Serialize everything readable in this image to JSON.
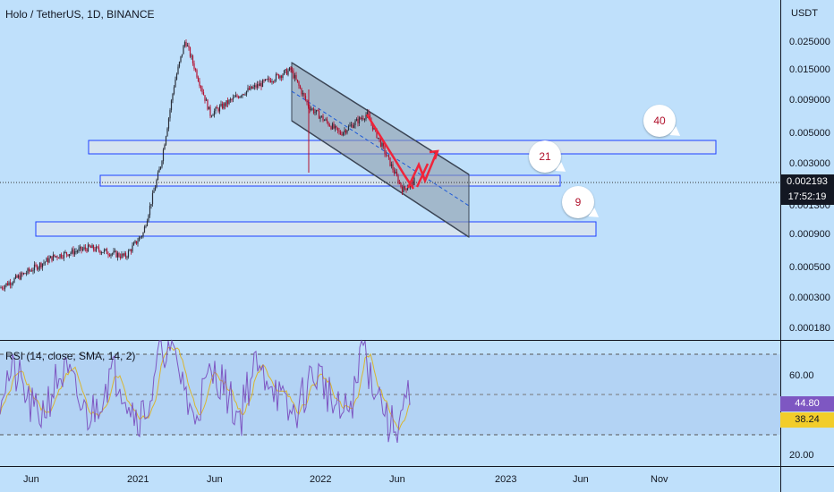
{
  "header": {
    "symbol_title": "Holo / TetherUS, 1D, BINANCE",
    "axis_currency": "USDT"
  },
  "price_badge": {
    "price": "0.002193",
    "countdown": "17:52:19"
  },
  "rsi_panel": {
    "label": "RSI (14, close, SMA, 14, 2)",
    "rsi_value": "44.80",
    "sma_value": "38.24",
    "upper_band": 70,
    "middle_band": 50,
    "lower_band": 30
  },
  "annotations": {
    "bubbles": [
      "40",
      "21",
      "9"
    ]
  },
  "colors": {
    "background": "#bfe0fb",
    "candle_up": "#2a2e39",
    "candle_down": "#b30f2e",
    "zone_fill": "#d6e4f0",
    "zone_border": "#1e40ff",
    "channel_fill": "#9aa7b6",
    "arrow": "#f0243a",
    "rsi_line": "#7e57c2",
    "rsi_sma": "#d9b531"
  },
  "chart_data": [
    {
      "type": "candlestick",
      "title": "Holo / TetherUS, 1D, BINANCE",
      "y_scale": "log",
      "y_ticks": [
        "0.025000",
        "0.015000",
        "0.009000",
        "0.005000",
        "0.003000",
        "0.001300",
        "0.000900",
        "0.000500",
        "0.000300",
        "0.000180"
      ],
      "x_ticks": [
        "Jun",
        "2021",
        "Jun",
        "2022",
        "Jun",
        "2023",
        "Jun",
        "Nov"
      ],
      "approx_price_path": [
        {
          "x": "Jun 2020",
          "y": 0.00035
        },
        {
          "x": "Aug 2020",
          "y": 0.0006
        },
        {
          "x": "Oct 2020",
          "y": 0.0007
        },
        {
          "x": "Dec 2020",
          "y": 0.0006
        },
        {
          "x": "Jan 2021",
          "y": 0.0009
        },
        {
          "x": "Feb 2021",
          "y": 0.003
        },
        {
          "x": "Mar 2021",
          "y": 0.012
        },
        {
          "x": "Apr 2021",
          "y": 0.025
        },
        {
          "x": "Jun 2021",
          "y": 0.007
        },
        {
          "x": "Aug 2021",
          "y": 0.01
        },
        {
          "x": "Nov 2021",
          "y": 0.015
        },
        {
          "x": "Jan 2022",
          "y": 0.008
        },
        {
          "x": "Mar 2022",
          "y": 0.005
        },
        {
          "x": "Apr 2022",
          "y": 0.007
        },
        {
          "x": "Jun 2022",
          "y": 0.0019
        },
        {
          "x": "Jul 2022",
          "y": 0.002193
        }
      ],
      "last_price": 0.002193
    },
    {
      "type": "line",
      "title": "RSI (14, close, SMA, 14, 2)",
      "y_ticks": [
        "60.00",
        "20.00"
      ],
      "bands": [
        30,
        50,
        70
      ],
      "series": [
        {
          "name": "RSI",
          "last": 44.8
        },
        {
          "name": "SMA",
          "last": 38.24
        }
      ]
    }
  ]
}
